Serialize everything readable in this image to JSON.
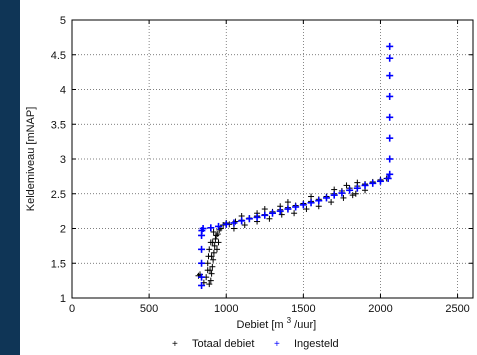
{
  "chart_data": {
    "type": "scatter",
    "title": "",
    "xlabel_parts": [
      "Debiet [m",
      "3",
      "/uur]"
    ],
    "ylabel": "Keldemiveau [mNAP]",
    "xlim": [
      0,
      2600
    ],
    "ylim": [
      1,
      5
    ],
    "xticks": [
      0,
      500,
      1000,
      1500,
      2000,
      2500
    ],
    "yticks": [
      1,
      1.5,
      2,
      2.5,
      3,
      3.5,
      4,
      4.5,
      5
    ],
    "xtick_labels": [
      "0",
      "500",
      "1000",
      "1500",
      "2000",
      "2500"
    ],
    "ytick_labels": [
      "1",
      "1.5",
      "2",
      "2.5",
      "3",
      "3.5",
      "4",
      "4.5",
      "5"
    ],
    "grid": true,
    "legend_position": "bottom",
    "series": [
      {
        "name": "Totaal debiet",
        "color": "#000000",
        "marker": "+",
        "points": [
          [
            855,
            1.22
          ],
          [
            870,
            1.3
          ],
          [
            880,
            1.4
          ],
          [
            880,
            1.5
          ],
          [
            885,
            1.6
          ],
          [
            890,
            1.7
          ],
          [
            900,
            1.8
          ],
          [
            900,
            1.25
          ],
          [
            905,
            1.35
          ],
          [
            910,
            1.45
          ],
          [
            915,
            1.55
          ],
          [
            920,
            1.65
          ],
          [
            925,
            1.75
          ],
          [
            930,
            1.85
          ],
          [
            935,
            1.9
          ],
          [
            945,
            1.92
          ],
          [
            955,
            1.98
          ],
          [
            965,
            2.0
          ],
          [
            980,
            2.05
          ],
          [
            1000,
            2.08
          ],
          [
            890,
            1.2
          ],
          [
            895,
            1.4
          ],
          [
            905,
            1.6
          ],
          [
            912,
            1.8
          ],
          [
            918,
            1.95
          ],
          [
            940,
            1.7
          ],
          [
            950,
            1.8
          ],
          [
            1020,
            2.06
          ],
          [
            1060,
            2.1
          ],
          [
            1100,
            2.12
          ],
          [
            1150,
            2.15
          ],
          [
            1200,
            2.18
          ],
          [
            1250,
            2.2
          ],
          [
            1300,
            2.24
          ],
          [
            1350,
            2.27
          ],
          [
            1400,
            2.3
          ],
          [
            1450,
            2.33
          ],
          [
            1500,
            2.36
          ],
          [
            1550,
            2.39
          ],
          [
            1600,
            2.42
          ],
          [
            1650,
            2.46
          ],
          [
            1700,
            2.5
          ],
          [
            1750,
            2.54
          ],
          [
            1800,
            2.58
          ],
          [
            1850,
            2.61
          ],
          [
            1900,
            2.64
          ],
          [
            1950,
            2.67
          ],
          [
            2000,
            2.7
          ],
          [
            2040,
            2.72
          ],
          [
            1050,
            2.0
          ],
          [
            1120,
            2.05
          ],
          [
            1200,
            2.1
          ],
          [
            1280,
            2.14
          ],
          [
            1360,
            2.2
          ],
          [
            1440,
            2.22
          ],
          [
            1520,
            2.28
          ],
          [
            1600,
            2.32
          ],
          [
            1680,
            2.38
          ],
          [
            1760,
            2.44
          ],
          [
            1840,
            2.5
          ],
          [
            1900,
            2.55
          ],
          [
            1100,
            2.18
          ],
          [
            1250,
            2.28
          ],
          [
            1400,
            2.38
          ],
          [
            1550,
            2.46
          ],
          [
            1700,
            2.56
          ],
          [
            1850,
            2.66
          ],
          [
            1780,
            2.62
          ],
          [
            1820,
            2.48
          ],
          [
            1200,
            2.22
          ],
          [
            1350,
            2.32
          ],
          [
            820,
            1.32
          ],
          [
            830,
            1.34
          ]
        ]
      },
      {
        "name": "Ingesteld",
        "color": "#0000ff",
        "marker": "+",
        "points": [
          [
            840,
            1.18
          ],
          [
            840,
            1.3
          ],
          [
            840,
            1.5
          ],
          [
            840,
            1.7
          ],
          [
            840,
            1.9
          ],
          [
            842,
            1.97
          ],
          [
            850,
            2.0
          ],
          [
            900,
            2.01
          ],
          [
            950,
            2.03
          ],
          [
            1000,
            2.06
          ],
          [
            1050,
            2.08
          ],
          [
            1100,
            2.11
          ],
          [
            1150,
            2.14
          ],
          [
            1200,
            2.16
          ],
          [
            1250,
            2.19
          ],
          [
            1300,
            2.22
          ],
          [
            1350,
            2.25
          ],
          [
            1400,
            2.28
          ],
          [
            1450,
            2.31
          ],
          [
            1500,
            2.34
          ],
          [
            1550,
            2.37
          ],
          [
            1600,
            2.4
          ],
          [
            1650,
            2.44
          ],
          [
            1700,
            2.48
          ],
          [
            1750,
            2.51
          ],
          [
            1800,
            2.55
          ],
          [
            1850,
            2.58
          ],
          [
            1900,
            2.62
          ],
          [
            1950,
            2.65
          ],
          [
            2000,
            2.68
          ],
          [
            2050,
            2.72
          ],
          [
            2060,
            2.78
          ],
          [
            2060,
            3.0
          ],
          [
            2060,
            3.3
          ],
          [
            2060,
            3.6
          ],
          [
            2060,
            3.9
          ],
          [
            2060,
            4.2
          ],
          [
            2060,
            4.45
          ],
          [
            2060,
            4.62
          ]
        ]
      }
    ]
  }
}
